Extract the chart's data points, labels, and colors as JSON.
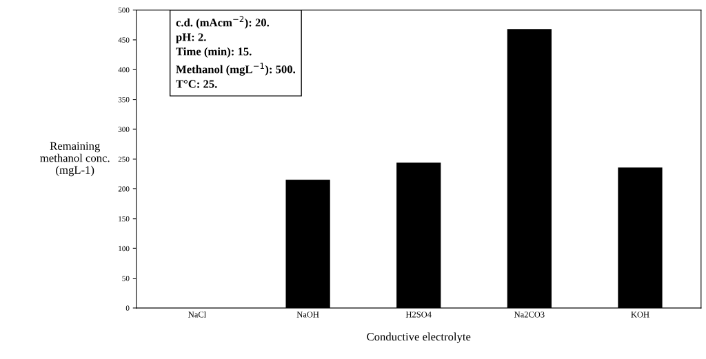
{
  "chart_data": {
    "type": "bar",
    "xlabel": "Conductive electrolyte",
    "ylabel": "Remaining\nmethanol conc.\n(mgL-1)",
    "categories": [
      "NaCl",
      "NaOH",
      "H2SO4",
      "Na2CO3",
      "KOH"
    ],
    "values": [
      0,
      215,
      244,
      468,
      236
    ],
    "color": "#000000",
    "ylim": [
      0,
      500
    ],
    "yticks": [
      0,
      50,
      100,
      150,
      200,
      250,
      300,
      350,
      400,
      450,
      500
    ],
    "grid": false,
    "annotations": [
      "c.d. (mAcm$^{−2}$): 20.\npH: 2.\nTime (min): 15.\nMethanol (mgL$^{−1}$): 500.\nT°C: 25."
    ]
  }
}
